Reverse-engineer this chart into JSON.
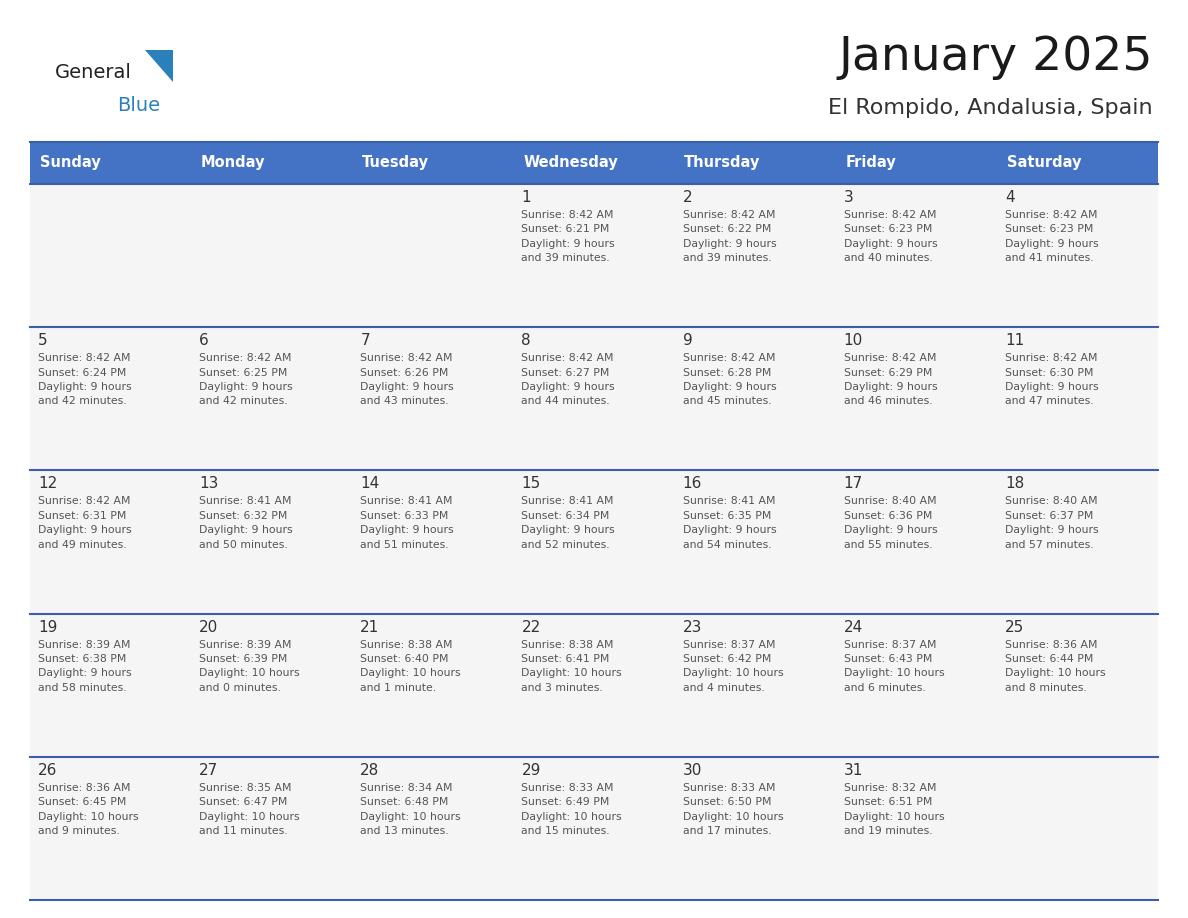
{
  "title": "January 2025",
  "subtitle": "El Rompido, Andalusia, Spain",
  "days_of_week": [
    "Sunday",
    "Monday",
    "Tuesday",
    "Wednesday",
    "Thursday",
    "Friday",
    "Saturday"
  ],
  "header_bg": "#4472C4",
  "header_text_color": "#FFFFFF",
  "cell_bg": "#F5F5F5",
  "row_separator_color": "#3A5EA8",
  "day_number_color": "#333333",
  "cell_text_color": "#555555",
  "title_color": "#1a1a1a",
  "subtitle_color": "#333333",
  "logo_general_color": "#222222",
  "logo_blue_color": "#2980BA",
  "logo_triangle_color": "#2980BA",
  "calendar": [
    [
      {
        "day": null,
        "text": ""
      },
      {
        "day": null,
        "text": ""
      },
      {
        "day": null,
        "text": ""
      },
      {
        "day": 1,
        "text": "Sunrise: 8:42 AM\nSunset: 6:21 PM\nDaylight: 9 hours\nand 39 minutes."
      },
      {
        "day": 2,
        "text": "Sunrise: 8:42 AM\nSunset: 6:22 PM\nDaylight: 9 hours\nand 39 minutes."
      },
      {
        "day": 3,
        "text": "Sunrise: 8:42 AM\nSunset: 6:23 PM\nDaylight: 9 hours\nand 40 minutes."
      },
      {
        "day": 4,
        "text": "Sunrise: 8:42 AM\nSunset: 6:23 PM\nDaylight: 9 hours\nand 41 minutes."
      }
    ],
    [
      {
        "day": 5,
        "text": "Sunrise: 8:42 AM\nSunset: 6:24 PM\nDaylight: 9 hours\nand 42 minutes."
      },
      {
        "day": 6,
        "text": "Sunrise: 8:42 AM\nSunset: 6:25 PM\nDaylight: 9 hours\nand 42 minutes."
      },
      {
        "day": 7,
        "text": "Sunrise: 8:42 AM\nSunset: 6:26 PM\nDaylight: 9 hours\nand 43 minutes."
      },
      {
        "day": 8,
        "text": "Sunrise: 8:42 AM\nSunset: 6:27 PM\nDaylight: 9 hours\nand 44 minutes."
      },
      {
        "day": 9,
        "text": "Sunrise: 8:42 AM\nSunset: 6:28 PM\nDaylight: 9 hours\nand 45 minutes."
      },
      {
        "day": 10,
        "text": "Sunrise: 8:42 AM\nSunset: 6:29 PM\nDaylight: 9 hours\nand 46 minutes."
      },
      {
        "day": 11,
        "text": "Sunrise: 8:42 AM\nSunset: 6:30 PM\nDaylight: 9 hours\nand 47 minutes."
      }
    ],
    [
      {
        "day": 12,
        "text": "Sunrise: 8:42 AM\nSunset: 6:31 PM\nDaylight: 9 hours\nand 49 minutes."
      },
      {
        "day": 13,
        "text": "Sunrise: 8:41 AM\nSunset: 6:32 PM\nDaylight: 9 hours\nand 50 minutes."
      },
      {
        "day": 14,
        "text": "Sunrise: 8:41 AM\nSunset: 6:33 PM\nDaylight: 9 hours\nand 51 minutes."
      },
      {
        "day": 15,
        "text": "Sunrise: 8:41 AM\nSunset: 6:34 PM\nDaylight: 9 hours\nand 52 minutes."
      },
      {
        "day": 16,
        "text": "Sunrise: 8:41 AM\nSunset: 6:35 PM\nDaylight: 9 hours\nand 54 minutes."
      },
      {
        "day": 17,
        "text": "Sunrise: 8:40 AM\nSunset: 6:36 PM\nDaylight: 9 hours\nand 55 minutes."
      },
      {
        "day": 18,
        "text": "Sunrise: 8:40 AM\nSunset: 6:37 PM\nDaylight: 9 hours\nand 57 minutes."
      }
    ],
    [
      {
        "day": 19,
        "text": "Sunrise: 8:39 AM\nSunset: 6:38 PM\nDaylight: 9 hours\nand 58 minutes."
      },
      {
        "day": 20,
        "text": "Sunrise: 8:39 AM\nSunset: 6:39 PM\nDaylight: 10 hours\nand 0 minutes."
      },
      {
        "day": 21,
        "text": "Sunrise: 8:38 AM\nSunset: 6:40 PM\nDaylight: 10 hours\nand 1 minute."
      },
      {
        "day": 22,
        "text": "Sunrise: 8:38 AM\nSunset: 6:41 PM\nDaylight: 10 hours\nand 3 minutes."
      },
      {
        "day": 23,
        "text": "Sunrise: 8:37 AM\nSunset: 6:42 PM\nDaylight: 10 hours\nand 4 minutes."
      },
      {
        "day": 24,
        "text": "Sunrise: 8:37 AM\nSunset: 6:43 PM\nDaylight: 10 hours\nand 6 minutes."
      },
      {
        "day": 25,
        "text": "Sunrise: 8:36 AM\nSunset: 6:44 PM\nDaylight: 10 hours\nand 8 minutes."
      }
    ],
    [
      {
        "day": 26,
        "text": "Sunrise: 8:36 AM\nSunset: 6:45 PM\nDaylight: 10 hours\nand 9 minutes."
      },
      {
        "day": 27,
        "text": "Sunrise: 8:35 AM\nSunset: 6:47 PM\nDaylight: 10 hours\nand 11 minutes."
      },
      {
        "day": 28,
        "text": "Sunrise: 8:34 AM\nSunset: 6:48 PM\nDaylight: 10 hours\nand 13 minutes."
      },
      {
        "day": 29,
        "text": "Sunrise: 8:33 AM\nSunset: 6:49 PM\nDaylight: 10 hours\nand 15 minutes."
      },
      {
        "day": 30,
        "text": "Sunrise: 8:33 AM\nSunset: 6:50 PM\nDaylight: 10 hours\nand 17 minutes."
      },
      {
        "day": 31,
        "text": "Sunrise: 8:32 AM\nSunset: 6:51 PM\nDaylight: 10 hours\nand 19 minutes."
      },
      {
        "day": null,
        "text": ""
      }
    ]
  ]
}
